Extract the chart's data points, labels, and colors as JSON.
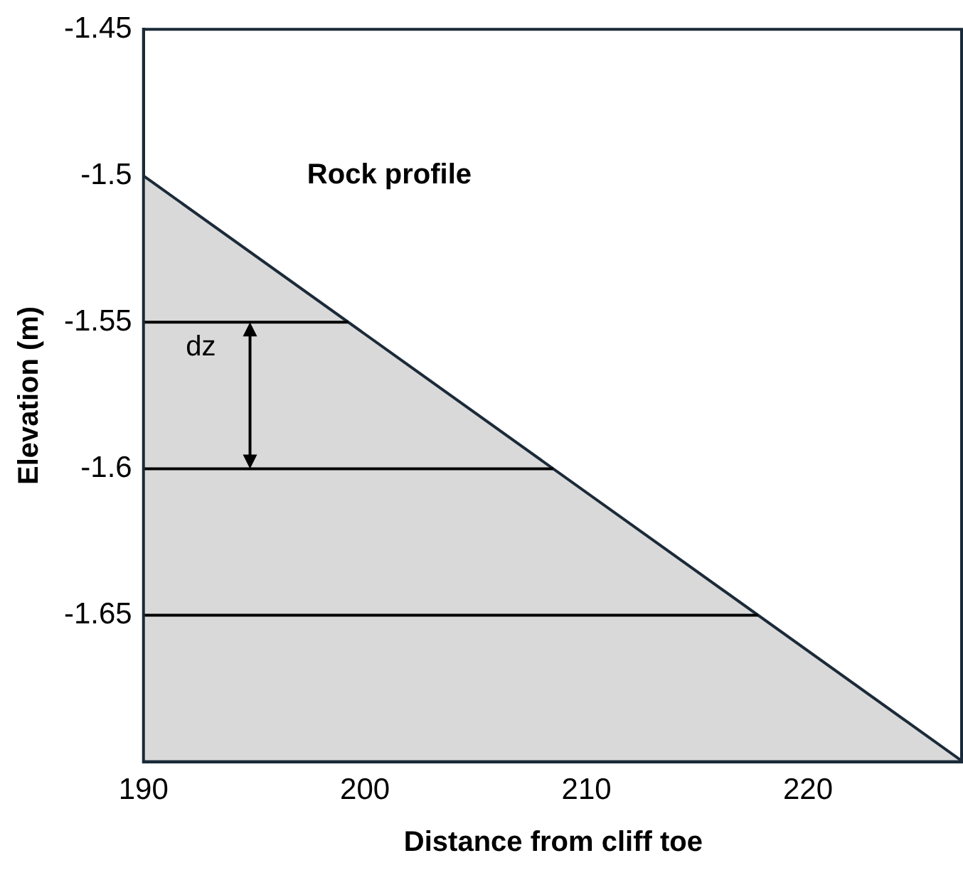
{
  "chart_data": {
    "type": "area",
    "xlabel": "Distance from cliff toe",
    "ylabel": "Elevation (m)",
    "xlim": [
      190,
      227
    ],
    "xticks": [
      190,
      200,
      210,
      220
    ],
    "ylim": [
      -1.7,
      -1.45
    ],
    "yticks": [
      -1.45,
      -1.5,
      -1.55,
      -1.6,
      -1.65
    ],
    "grid": false,
    "legend": false,
    "marker": "none",
    "series": [
      {
        "color": "#d9d9d9",
        "x": [
          190,
          227
        ],
        "values": [
          -1.5,
          -1.7
        ]
      },
      {
        "type": "line",
        "color": "#000000",
        "x": [
          190,
          199.25
        ],
        "values": [
          -1.55,
          -1.55
        ]
      },
      {
        "type": "line",
        "color": "#000000",
        "x": [
          190,
          208.5
        ],
        "values": [
          -1.6,
          -1.6
        ]
      },
      {
        "type": "line",
        "color": "#000000",
        "x": [
          190,
          217.75
        ],
        "values": [
          -1.65,
          -1.65
        ]
      }
    ],
    "annotations": [
      "Rock profile",
      "dz"
    ]
  }
}
